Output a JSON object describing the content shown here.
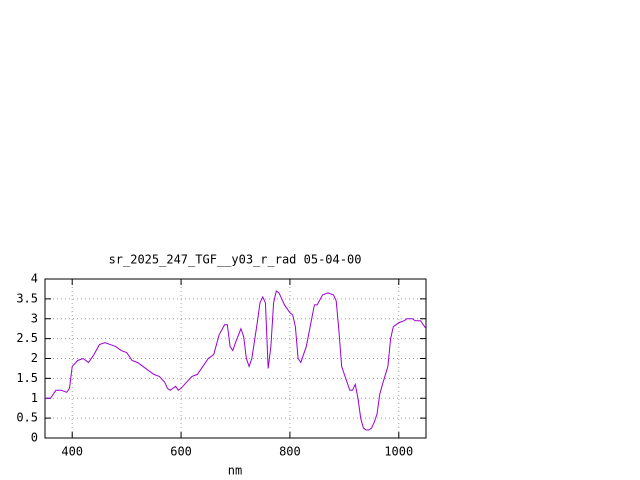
{
  "chart_data": {
    "type": "line",
    "title": "sr_2025_247_TGF__y03_r_rad 05-04-00",
    "xlabel": "nm",
    "x": [
      350,
      360,
      370,
      380,
      390,
      395,
      400,
      410,
      420,
      430,
      440,
      450,
      460,
      470,
      480,
      490,
      500,
      510,
      520,
      530,
      540,
      550,
      560,
      570,
      575,
      580,
      590,
      595,
      600,
      610,
      620,
      630,
      640,
      650,
      660,
      670,
      680,
      685,
      690,
      695,
      700,
      710,
      715,
      720,
      725,
      730,
      740,
      745,
      750,
      755,
      760,
      765,
      770,
      775,
      780,
      790,
      800,
      805,
      810,
      815,
      820,
      830,
      840,
      845,
      850,
      860,
      870,
      880,
      885,
      890,
      895,
      900,
      905,
      910,
      915,
      920,
      925,
      930,
      935,
      940,
      945,
      950,
      955,
      960,
      965,
      970,
      980,
      985,
      990,
      1000,
      1010,
      1015,
      1020,
      1025,
      1030,
      1040,
      1050
    ],
    "series": [
      {
        "color": "#9b00d3",
        "values": [
          1.0,
          1.0,
          1.2,
          1.2,
          1.15,
          1.25,
          1.8,
          1.95,
          2.0,
          1.9,
          2.1,
          2.35,
          2.4,
          2.35,
          2.3,
          2.2,
          2.15,
          1.95,
          1.9,
          1.8,
          1.7,
          1.6,
          1.55,
          1.4,
          1.25,
          1.2,
          1.3,
          1.2,
          1.25,
          1.4,
          1.55,
          1.6,
          1.8,
          2.0,
          2.1,
          2.6,
          2.85,
          2.85,
          2.3,
          2.2,
          2.4,
          2.75,
          2.55,
          2.0,
          1.8,
          2.0,
          2.9,
          3.4,
          3.55,
          3.4,
          1.75,
          2.3,
          3.4,
          3.7,
          3.65,
          3.35,
          3.15,
          3.1,
          2.8,
          2.0,
          1.9,
          2.3,
          3.0,
          3.35,
          3.35,
          3.6,
          3.65,
          3.6,
          3.45,
          2.7,
          1.8,
          1.6,
          1.4,
          1.2,
          1.2,
          1.35,
          1.0,
          0.5,
          0.25,
          0.2,
          0.2,
          0.25,
          0.4,
          0.6,
          1.1,
          1.35,
          1.8,
          2.5,
          2.8,
          2.9,
          2.95,
          3.0,
          3.0,
          3.0,
          2.95,
          2.95,
          2.75
        ]
      }
    ],
    "xlim": [
      350,
      1050
    ],
    "xticks": [
      400,
      600,
      800,
      1000
    ],
    "ylim": [
      0,
      4
    ],
    "yticks": [
      0,
      0.5,
      1,
      1.5,
      2,
      2.5,
      3,
      3.5,
      4
    ],
    "grid": true
  }
}
